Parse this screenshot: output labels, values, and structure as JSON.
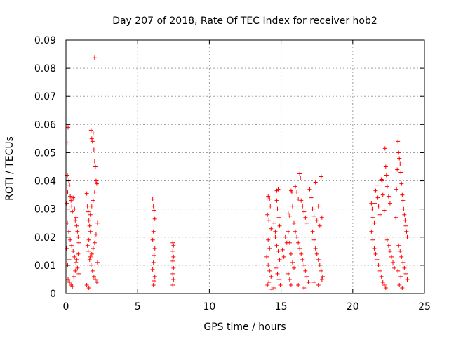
{
  "chart_data": {
    "type": "scatter",
    "title": "Day 207 of 2018, Rate Of TEC Index for receiver hob2",
    "xlabel": "GPS time / hours",
    "ylabel": "ROTI / TECUs",
    "xlim": [
      0,
      25
    ],
    "ylim": [
      0,
      0.09
    ],
    "x_ticks": [
      0,
      5,
      10,
      15,
      20,
      25
    ],
    "x_tick_labels": [
      "0",
      "5",
      "10",
      "15",
      "20",
      "25"
    ],
    "y_ticks": [
      0,
      0.01,
      0.02,
      0.03,
      0.04,
      0.05,
      0.06,
      0.07,
      0.08,
      0.09
    ],
    "y_tick_labels": [
      "0",
      "0.01",
      "0.02",
      "0.03",
      "0.04",
      "0.05",
      "0.06",
      "0.07",
      "0.08",
      "0.09"
    ],
    "grid": true,
    "marker": "+",
    "marker_color": "#ff0000",
    "series": [
      {
        "points": [
          [
            0.08,
            0.0535
          ],
          [
            0.15,
            0.059
          ],
          [
            0.1,
            0.042
          ],
          [
            0.2,
            0.04
          ],
          [
            0.25,
            0.0385
          ],
          [
            0.12,
            0.036
          ],
          [
            0.3,
            0.0345
          ],
          [
            0.05,
            0.032
          ],
          [
            0.35,
            0.033
          ],
          [
            0.4,
            0.031
          ],
          [
            0.45,
            0.029
          ],
          [
            0.5,
            0.034
          ],
          [
            0.55,
            0.0335
          ],
          [
            0.6,
            0.03
          ],
          [
            0.65,
            0.026
          ],
          [
            0.7,
            0.027
          ],
          [
            0.75,
            0.024
          ],
          [
            0.8,
            0.022
          ],
          [
            0.85,
            0.02
          ],
          [
            0.9,
            0.018
          ],
          [
            0.1,
            0.025
          ],
          [
            0.2,
            0.022
          ],
          [
            0.3,
            0.019
          ],
          [
            0.4,
            0.017
          ],
          [
            0.5,
            0.015
          ],
          [
            0.6,
            0.013
          ],
          [
            0.7,
            0.011
          ],
          [
            0.8,
            0.009
          ],
          [
            0.9,
            0.007
          ],
          [
            0.15,
            0.005
          ],
          [
            0.25,
            0.004
          ],
          [
            0.35,
            0.003
          ],
          [
            0.45,
            0.0025
          ],
          [
            0.55,
            0.006
          ],
          [
            0.65,
            0.008
          ],
          [
            0.75,
            0.012
          ],
          [
            0.85,
            0.014
          ],
          [
            0.05,
            0.016
          ],
          [
            0.12,
            0.01
          ],
          [
            0.22,
            0.012
          ],
          [
            1.45,
            0.0355
          ],
          [
            1.5,
            0.031
          ],
          [
            1.55,
            0.029
          ],
          [
            1.6,
            0.026
          ],
          [
            1.65,
            0.024
          ],
          [
            1.7,
            0.022
          ],
          [
            1.75,
            0.058
          ],
          [
            1.8,
            0.055
          ],
          [
            1.85,
            0.054
          ],
          [
            1.9,
            0.057
          ],
          [
            1.95,
            0.051
          ],
          [
            2.0,
            0.047
          ],
          [
            2.05,
            0.045
          ],
          [
            2.1,
            0.04
          ],
          [
            2.15,
            0.039
          ],
          [
            2.0,
            0.036
          ],
          [
            1.9,
            0.033
          ],
          [
            1.8,
            0.031
          ],
          [
            1.7,
            0.028
          ],
          [
            1.6,
            0.019
          ],
          [
            1.5,
            0.017
          ],
          [
            1.55,
            0.015
          ],
          [
            1.65,
            0.012
          ],
          [
            1.75,
            0.01
          ],
          [
            1.85,
            0.008
          ],
          [
            1.95,
            0.006
          ],
          [
            2.05,
            0.005
          ],
          [
            2.15,
            0.004
          ],
          [
            1.45,
            0.003
          ],
          [
            1.6,
            0.002
          ],
          [
            2.2,
            0.025
          ],
          [
            2.1,
            0.021
          ],
          [
            2.0,
            0.018
          ],
          [
            1.9,
            0.016
          ],
          [
            1.8,
            0.014
          ],
          [
            1.7,
            0.013
          ],
          [
            2.2,
            0.011
          ],
          [
            2.0,
            0.0837
          ],
          [
            6.05,
            0.0335
          ],
          [
            6.1,
            0.031
          ],
          [
            6.15,
            0.0295
          ],
          [
            6.2,
            0.0265
          ],
          [
            6.1,
            0.022
          ],
          [
            6.05,
            0.019
          ],
          [
            6.2,
            0.016
          ],
          [
            6.15,
            0.0135
          ],
          [
            6.1,
            0.011
          ],
          [
            6.05,
            0.0085
          ],
          [
            6.2,
            0.006
          ],
          [
            6.15,
            0.0045
          ],
          [
            6.1,
            0.003
          ],
          [
            7.45,
            0.018
          ],
          [
            7.5,
            0.017
          ],
          [
            7.45,
            0.015
          ],
          [
            7.5,
            0.013
          ],
          [
            7.45,
            0.0115
          ],
          [
            7.5,
            0.009
          ],
          [
            7.45,
            0.007
          ],
          [
            7.5,
            0.005
          ],
          [
            7.45,
            0.003
          ],
          [
            14.1,
            0.0345
          ],
          [
            14.2,
            0.0335
          ],
          [
            14.25,
            0.031
          ],
          [
            14.05,
            0.028
          ],
          [
            14.15,
            0.026
          ],
          [
            14.3,
            0.023
          ],
          [
            14.1,
            0.019
          ],
          [
            14.2,
            0.016
          ],
          [
            14.0,
            0.013
          ],
          [
            14.1,
            0.01
          ],
          [
            14.2,
            0.008
          ],
          [
            14.3,
            0.006
          ],
          [
            14.15,
            0.004
          ],
          [
            14.05,
            0.003
          ],
          [
            14.35,
            0.0015
          ],
          [
            14.5,
            0.025
          ],
          [
            14.6,
            0.022
          ],
          [
            14.7,
            0.0365
          ],
          [
            14.8,
            0.037
          ],
          [
            14.7,
            0.033
          ],
          [
            14.75,
            0.03
          ],
          [
            14.85,
            0.027
          ],
          [
            14.9,
            0.024
          ],
          [
            14.6,
            0.02
          ],
          [
            14.7,
            0.017
          ],
          [
            14.8,
            0.015
          ],
          [
            14.9,
            0.012
          ],
          [
            14.65,
            0.009
          ],
          [
            14.75,
            0.007
          ],
          [
            14.85,
            0.005
          ],
          [
            14.95,
            0.003
          ],
          [
            14.5,
            0.002
          ],
          [
            15.1,
            0.0155
          ],
          [
            15.2,
            0.013
          ],
          [
            15.3,
            0.02
          ],
          [
            15.4,
            0.018
          ],
          [
            15.5,
            0.0285
          ],
          [
            15.6,
            0.0275
          ],
          [
            15.7,
            0.0365
          ],
          [
            15.75,
            0.036
          ],
          [
            15.8,
            0.031
          ],
          [
            15.9,
            0.025
          ],
          [
            15.5,
            0.022
          ],
          [
            15.6,
            0.018
          ],
          [
            15.7,
            0.014
          ],
          [
            15.8,
            0.011
          ],
          [
            15.9,
            0.009
          ],
          [
            15.5,
            0.007
          ],
          [
            15.6,
            0.005
          ],
          [
            15.7,
            0.003
          ],
          [
            16.0,
            0.038
          ],
          [
            16.1,
            0.036
          ],
          [
            16.2,
            0.0335
          ],
          [
            16.3,
            0.0425
          ],
          [
            16.35,
            0.041
          ],
          [
            16.4,
            0.033
          ],
          [
            16.5,
            0.031
          ],
          [
            16.6,
            0.029
          ],
          [
            16.7,
            0.027
          ],
          [
            16.8,
            0.025
          ],
          [
            16.0,
            0.022
          ],
          [
            16.1,
            0.02
          ],
          [
            16.2,
            0.018
          ],
          [
            16.3,
            0.016
          ],
          [
            16.4,
            0.014
          ],
          [
            16.5,
            0.012
          ],
          [
            16.6,
            0.01
          ],
          [
            16.7,
            0.008
          ],
          [
            16.8,
            0.006
          ],
          [
            16.9,
            0.004
          ],
          [
            16.2,
            0.003
          ],
          [
            16.6,
            0.002
          ],
          [
            17.0,
            0.037
          ],
          [
            17.1,
            0.034
          ],
          [
            17.2,
            0.03
          ],
          [
            17.3,
            0.0275
          ],
          [
            17.4,
            0.0395
          ],
          [
            17.5,
            0.026
          ],
          [
            17.6,
            0.031
          ],
          [
            17.7,
            0.024
          ],
          [
            17.8,
            0.0415
          ],
          [
            17.85,
            0.027
          ],
          [
            17.2,
            0.022
          ],
          [
            17.3,
            0.019
          ],
          [
            17.4,
            0.016
          ],
          [
            17.5,
            0.014
          ],
          [
            17.6,
            0.012
          ],
          [
            17.7,
            0.01
          ],
          [
            17.8,
            0.008
          ],
          [
            17.9,
            0.006
          ],
          [
            17.3,
            0.004
          ],
          [
            17.6,
            0.003
          ],
          [
            17.85,
            0.005
          ],
          [
            21.3,
            0.032
          ],
          [
            21.35,
            0.03
          ],
          [
            21.4,
            0.027
          ],
          [
            21.5,
            0.025
          ],
          [
            21.55,
            0.032
          ],
          [
            21.6,
            0.0365
          ],
          [
            21.7,
            0.0385
          ],
          [
            21.75,
            0.034
          ],
          [
            21.8,
            0.031
          ],
          [
            21.9,
            0.028
          ],
          [
            22.0,
            0.0405
          ],
          [
            22.05,
            0.04
          ],
          [
            22.1,
            0.035
          ],
          [
            22.2,
            0.0295
          ],
          [
            22.25,
            0.0515
          ],
          [
            22.3,
            0.045
          ],
          [
            22.35,
            0.042
          ],
          [
            22.4,
            0.038
          ],
          [
            22.5,
            0.0345
          ],
          [
            22.6,
            0.032
          ],
          [
            21.3,
            0.022
          ],
          [
            21.4,
            0.019
          ],
          [
            21.5,
            0.016
          ],
          [
            21.6,
            0.014
          ],
          [
            21.7,
            0.012
          ],
          [
            21.8,
            0.01
          ],
          [
            21.9,
            0.008
          ],
          [
            22.0,
            0.006
          ],
          [
            22.1,
            0.004
          ],
          [
            22.2,
            0.003
          ],
          [
            22.3,
            0.002
          ],
          [
            22.4,
            0.019
          ],
          [
            22.5,
            0.017
          ],
          [
            22.6,
            0.015
          ],
          [
            22.7,
            0.013
          ],
          [
            22.8,
            0.011
          ],
          [
            22.9,
            0.009
          ],
          [
            23.0,
            0.027
          ],
          [
            23.05,
            0.037
          ],
          [
            23.1,
            0.044
          ],
          [
            23.15,
            0.054
          ],
          [
            23.2,
            0.05
          ],
          [
            23.25,
            0.048
          ],
          [
            23.3,
            0.046
          ],
          [
            23.35,
            0.043
          ],
          [
            23.4,
            0.039
          ],
          [
            23.45,
            0.035
          ],
          [
            23.5,
            0.033
          ],
          [
            23.55,
            0.03
          ],
          [
            23.6,
            0.028
          ],
          [
            23.65,
            0.026
          ],
          [
            23.7,
            0.024
          ],
          [
            23.75,
            0.022
          ],
          [
            23.8,
            0.02
          ],
          [
            23.2,
            0.017
          ],
          [
            23.3,
            0.015
          ],
          [
            23.4,
            0.013
          ],
          [
            23.5,
            0.011
          ],
          [
            23.6,
            0.009
          ],
          [
            23.7,
            0.007
          ],
          [
            23.8,
            0.005
          ],
          [
            23.25,
            0.003
          ],
          [
            23.45,
            0.002
          ],
          [
            23.15,
            0.008
          ],
          [
            23.35,
            0.006
          ]
        ]
      }
    ]
  }
}
